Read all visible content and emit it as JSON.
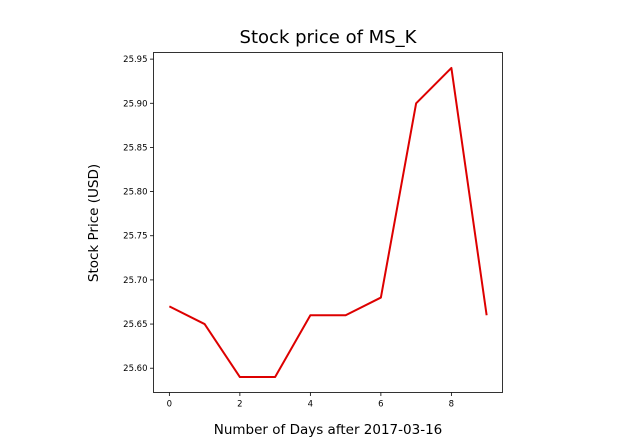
{
  "chart_data": {
    "type": "line",
    "title": "Stock price of MS_K",
    "xlabel": "Number of Days after 2017-03-16",
    "ylabel": "Stock Price (USD)",
    "x": [
      0,
      1,
      2,
      3,
      4,
      5,
      6,
      7,
      8,
      9
    ],
    "series": [
      {
        "values": [
          25.67,
          25.65,
          25.59,
          25.59,
          25.66,
          25.66,
          25.68,
          25.9,
          25.94,
          25.66
        ],
        "color": "#dd0000"
      }
    ],
    "xticks": [
      0,
      2,
      4,
      6,
      8
    ],
    "yticks": [
      25.6,
      25.65,
      25.7,
      25.75,
      25.8,
      25.85,
      25.9,
      25.95
    ],
    "xlim": [
      -0.45,
      9.45
    ],
    "ylim": [
      25.5725,
      25.9575
    ],
    "grid": false,
    "legend": "none"
  }
}
